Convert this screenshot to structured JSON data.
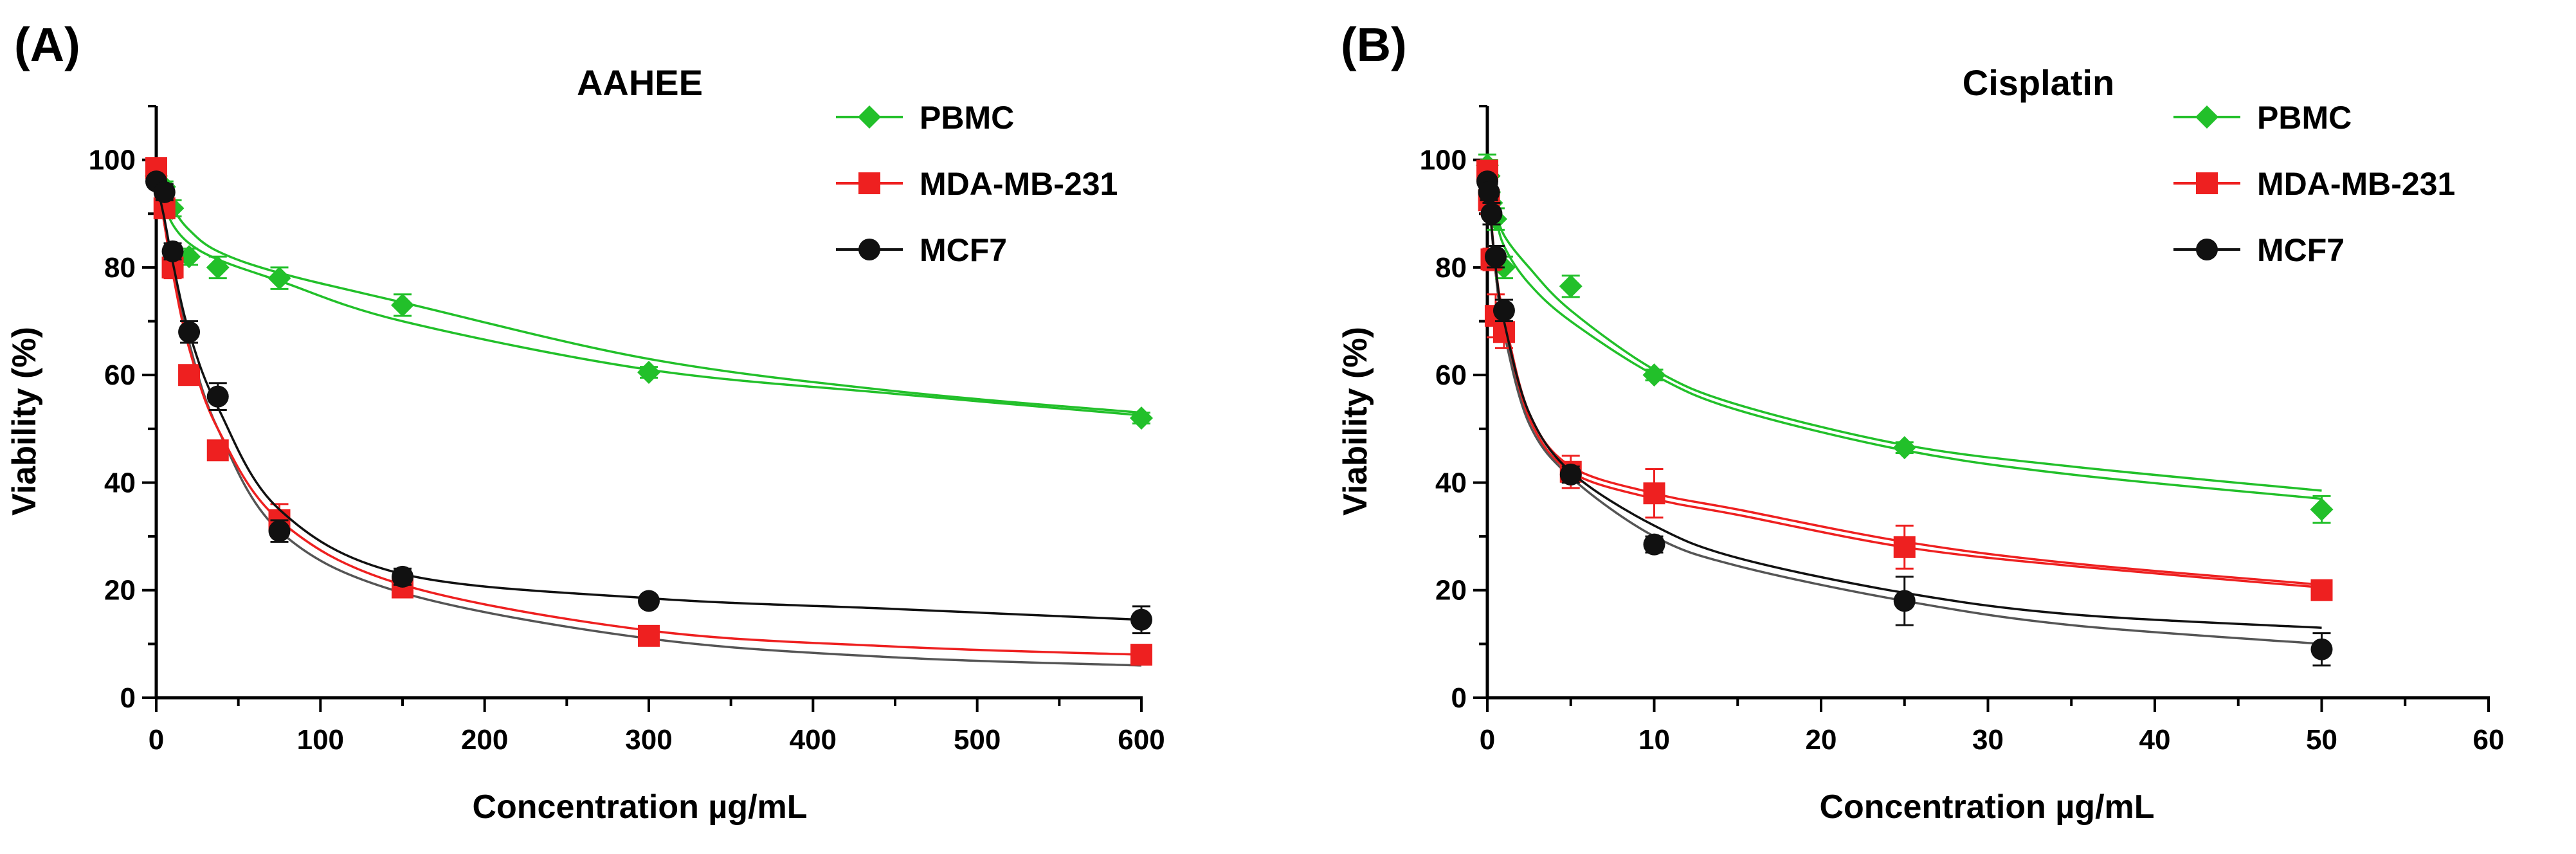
{
  "figure": {
    "panels": [
      {
        "label": "(A)"
      },
      {
        "label": "(B)"
      }
    ]
  },
  "chart_data": [
    {
      "type": "scatter",
      "title": "AAHEE",
      "xlabel": "Concentration µg/mL",
      "ylabel": "Viability (%)",
      "xlim": [
        0,
        600
      ],
      "ylim": [
        0,
        110
      ],
      "x_ticks": [
        0,
        100,
        200,
        300,
        400,
        500,
        600
      ],
      "y_ticks": [
        0,
        20,
        40,
        60,
        80,
        100
      ],
      "legend": "top-right",
      "series": [
        {
          "name": "PBMC",
          "color": "#22c02a",
          "marker": "diamond",
          "x": [
            0,
            5,
            10,
            20,
            37.5,
            75,
            150,
            300,
            600
          ],
          "y": [
            97,
            95,
            91,
            82,
            80,
            78,
            73,
            60.5,
            52
          ],
          "err": [
            1,
            1,
            1.5,
            1.5,
            2,
            2,
            2,
            1,
            1
          ],
          "fit": [
            [
              0,
              96
            ],
            [
              5,
              94
            ],
            [
              10,
              91
            ],
            [
              20,
              87
            ],
            [
              37.5,
              83
            ],
            [
              75,
              79
            ],
            [
              150,
              73.5
            ],
            [
              300,
              63
            ],
            [
              450,
              57
            ],
            [
              600,
              53
            ]
          ]
        },
        {
          "name": "MDA-MB-231",
          "color": "#ee2020",
          "marker": "square",
          "x": [
            0,
            5,
            10,
            20,
            37.5,
            75,
            150,
            300,
            600
          ],
          "y": [
            98.5,
            91,
            80,
            60,
            46,
            33,
            20.5,
            11.5,
            8
          ],
          "err": [
            1.5,
            1.5,
            2,
            1.5,
            1.5,
            3,
            1.5,
            1,
            1.5
          ],
          "fit": [
            [
              0,
              98
            ],
            [
              5,
              88
            ],
            [
              10,
              79
            ],
            [
              20,
              65
            ],
            [
              37.5,
              50
            ],
            [
              75,
              33
            ],
            [
              150,
              21
            ],
            [
              300,
              12.5
            ],
            [
              450,
              9.5
            ],
            [
              600,
              8
            ]
          ]
        },
        {
          "name": "MCF7",
          "color": "#111111",
          "marker": "circle",
          "x": [
            0,
            5,
            10,
            20,
            37.5,
            75,
            150,
            300,
            600
          ],
          "y": [
            96,
            94,
            83,
            68,
            56,
            31,
            22.5,
            18,
            14.5
          ],
          "err": [
            1,
            1.5,
            1.5,
            2,
            2.5,
            2,
            1.5,
            1,
            2.5
          ],
          "fit": [
            [
              0,
              96
            ],
            [
              5,
              89
            ],
            [
              10,
              81
            ],
            [
              20,
              68
            ],
            [
              37.5,
              54
            ],
            [
              75,
              35
            ],
            [
              150,
              23
            ],
            [
              300,
              18.5
            ],
            [
              450,
              16.5
            ],
            [
              600,
              14.5
            ]
          ]
        }
      ],
      "extra_fits": [
        {
          "color": "#22c02a",
          "points": [
            [
              0,
              97
            ],
            [
              5,
              92
            ],
            [
              10,
              88
            ],
            [
              20,
              84.5
            ],
            [
              37.5,
              81.5
            ],
            [
              75,
              77.5
            ],
            [
              150,
              70
            ],
            [
              300,
              61
            ],
            [
              450,
              56.5
            ],
            [
              600,
              52.5
            ]
          ]
        },
        {
          "color": "#555555",
          "points": [
            [
              0,
              97
            ],
            [
              5,
              88
            ],
            [
              10,
              80
            ],
            [
              20,
              66
            ],
            [
              37.5,
              50
            ],
            [
              75,
              31
            ],
            [
              150,
              19.5
            ],
            [
              300,
              11
            ],
            [
              450,
              7.5
            ],
            [
              600,
              6
            ]
          ]
        }
      ]
    },
    {
      "type": "scatter",
      "title": "Cisplatin",
      "xlabel": "Concentration µg/mL",
      "ylabel": "Viability (%)",
      "xlim": [
        0,
        60
      ],
      "ylim": [
        0,
        110
      ],
      "x_ticks": [
        0,
        10,
        20,
        30,
        40,
        50,
        60
      ],
      "y_ticks": [
        0,
        20,
        40,
        60,
        80,
        100
      ],
      "legend": "top-right",
      "series": [
        {
          "name": "PBMC",
          "color": "#22c02a",
          "marker": "diamond",
          "x": [
            0,
            0.1,
            0.25,
            0.5,
            1,
            5,
            10,
            25,
            50
          ],
          "y": [
            99,
            97,
            92,
            89,
            80,
            76.5,
            60,
            46.5,
            35
          ],
          "err": [
            2,
            3,
            2,
            2,
            2,
            2,
            1,
            1,
            2.5
          ],
          "fit": [
            [
              0,
              98
            ],
            [
              0.5,
              91
            ],
            [
              1,
              86
            ],
            [
              2.5,
              80
            ],
            [
              5,
              72
            ],
            [
              10,
              61
            ],
            [
              15,
              54.5
            ],
            [
              25,
              47
            ],
            [
              35,
              43
            ],
            [
              50,
              38.5
            ]
          ]
        },
        {
          "name": "MDA-MB-231",
          "color": "#ee2020",
          "marker": "square",
          "x": [
            0,
            0.1,
            0.25,
            0.5,
            1,
            5,
            10,
            25,
            50
          ],
          "y": [
            98,
            92.5,
            81.5,
            71,
            68,
            42,
            38,
            28,
            20
          ],
          "err": [
            1.5,
            2.5,
            2,
            4,
            3,
            3,
            4.5,
            4,
            1
          ],
          "fit": [
            [
              0,
              97
            ],
            [
              0.5,
              80
            ],
            [
              1,
              71
            ],
            [
              2.5,
              53
            ],
            [
              5,
              43
            ],
            [
              10,
              38
            ],
            [
              15,
              35
            ],
            [
              25,
              29
            ],
            [
              35,
              25
            ],
            [
              50,
              21
            ]
          ]
        },
        {
          "name": "MCF7",
          "color": "#111111",
          "marker": "circle",
          "x": [
            0,
            0.1,
            0.25,
            0.5,
            1,
            5,
            10,
            25,
            50
          ],
          "y": [
            96,
            94,
            90,
            82,
            72,
            41.5,
            28.5,
            18,
            9
          ],
          "err": [
            1,
            1.5,
            2,
            2,
            2,
            1.5,
            1.5,
            4.5,
            3
          ],
          "fit": [
            [
              0,
              96
            ],
            [
              0.5,
              80
            ],
            [
              1,
              70
            ],
            [
              2.5,
              53
            ],
            [
              5,
              42
            ],
            [
              10,
              32
            ],
            [
              15,
              26
            ],
            [
              25,
              19.5
            ],
            [
              35,
              15.5
            ],
            [
              50,
              13
            ]
          ]
        }
      ],
      "extra_fits": [
        {
          "color": "#22c02a",
          "points": [
            [
              0,
              99
            ],
            [
              0.5,
              90
            ],
            [
              1,
              84
            ],
            [
              2.5,
              77
            ],
            [
              5,
              70
            ],
            [
              10,
              60
            ],
            [
              15,
              53.5
            ],
            [
              25,
              46
            ],
            [
              35,
              41.5
            ],
            [
              50,
              37
            ]
          ]
        },
        {
          "color": "#ee2020",
          "points": [
            [
              0,
              97
            ],
            [
              0.5,
              79
            ],
            [
              1,
              69
            ],
            [
              2.5,
              52
            ],
            [
              5,
              42
            ],
            [
              10,
              37
            ],
            [
              15,
              34
            ],
            [
              25,
              28
            ],
            [
              35,
              24.5
            ],
            [
              50,
              20.5
            ]
          ]
        },
        {
          "color": "#555555",
          "points": [
            [
              0,
              96
            ],
            [
              0.5,
              79
            ],
            [
              1,
              68
            ],
            [
              2.5,
              51
            ],
            [
              5,
              41
            ],
            [
              10,
              30
            ],
            [
              15,
              24.5
            ],
            [
              25,
              18
            ],
            [
              35,
              13.5
            ],
            [
              50,
              10
            ]
          ]
        }
      ]
    }
  ]
}
